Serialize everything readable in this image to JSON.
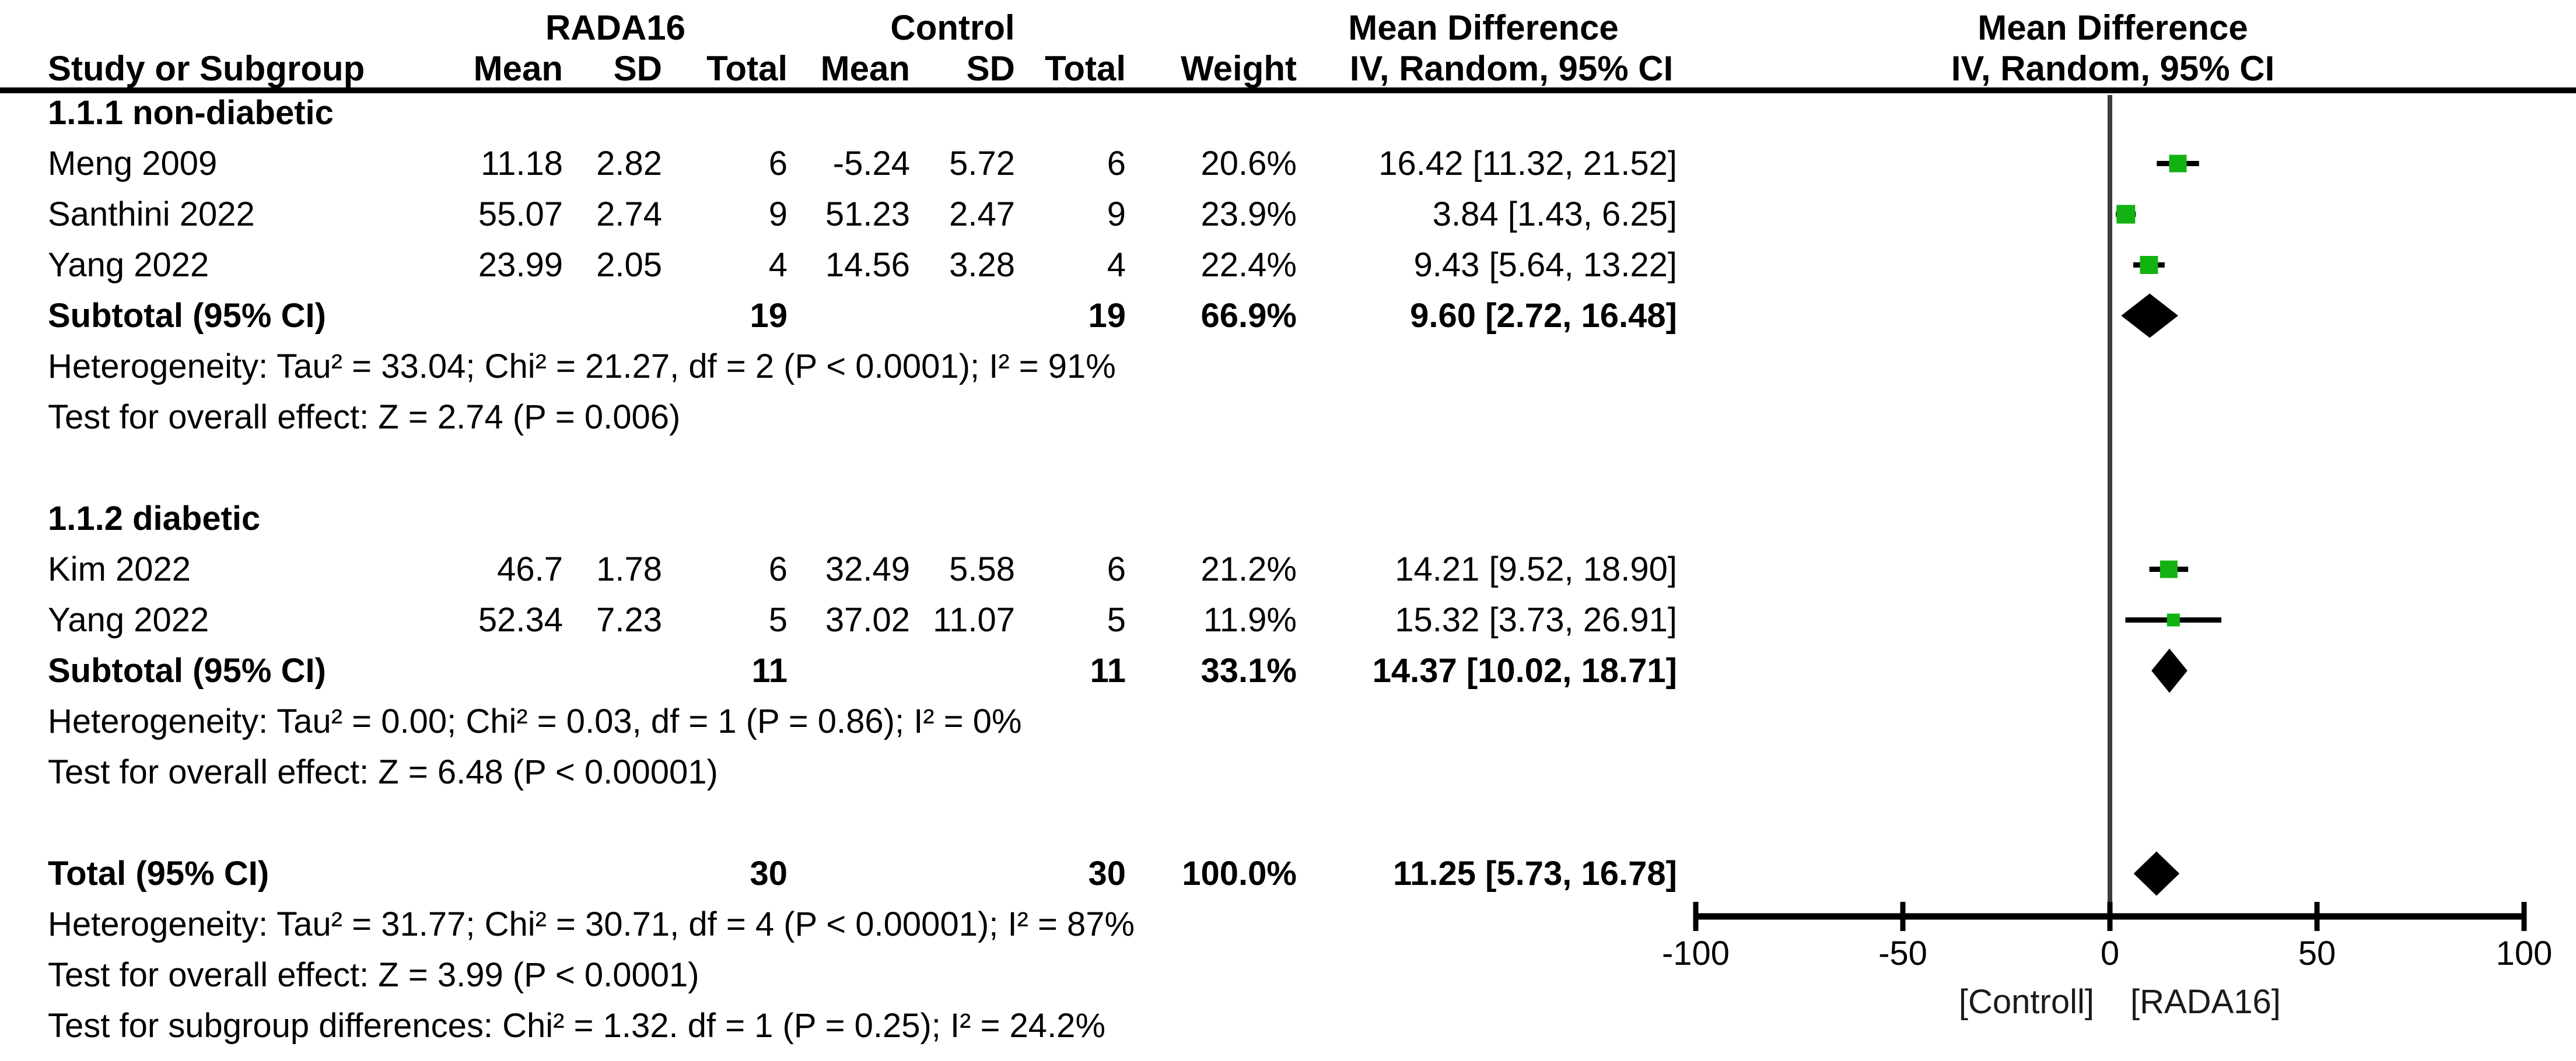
{
  "header": {
    "group_experimental": "RADA16",
    "group_control": "Control",
    "effect_column_title": "Mean Difference",
    "effect_plot_title": "Mean Difference",
    "col_study": "Study or Subgroup",
    "col_mean": "Mean",
    "col_sd": "SD",
    "col_total": "Total",
    "col_weight": "Weight",
    "col_ci": "IV, Random, 95% CI",
    "col_ci_plot": "IV, Random, 95% CI"
  },
  "colors": {
    "square_green": "#12b212",
    "diamond_black": "#000000",
    "ci_line": "#000000",
    "zero_line": "#3c3c3c",
    "axis": "#000000"
  },
  "chart_data": {
    "type": "forest",
    "effect_measure": "Mean Difference",
    "model": "IV, Random, 95% CI",
    "axis": {
      "min": -100,
      "max": 100,
      "ticks": [
        -100,
        -50,
        0,
        50,
        100
      ],
      "favours_left": "[Controll]",
      "favours_right": "[RADA16]"
    },
    "subgroups": [
      {
        "label": "1.1.1 non-diabetic",
        "studies": [
          {
            "name": "Meng 2009",
            "mean_t": "11.18",
            "sd_t": "2.82",
            "n_t": "6",
            "mean_c": "-5.24",
            "sd_c": "5.72",
            "n_c": "6",
            "weight": 20.6,
            "weight_label": "20.6%",
            "md": 16.42,
            "lo": 11.32,
            "hi": 21.52,
            "ci_label": "16.42 [11.32, 21.52]"
          },
          {
            "name": "Santhini 2022",
            "mean_t": "55.07",
            "sd_t": "2.74",
            "n_t": "9",
            "mean_c": "51.23",
            "sd_c": "2.47",
            "n_c": "9",
            "weight": 23.9,
            "weight_label": "23.9%",
            "md": 3.84,
            "lo": 1.43,
            "hi": 6.25,
            "ci_label": "3.84 [1.43, 6.25]"
          },
          {
            "name": "Yang 2022",
            "mean_t": "23.99",
            "sd_t": "2.05",
            "n_t": "4",
            "mean_c": "14.56",
            "sd_c": "3.28",
            "n_c": "4",
            "weight": 22.4,
            "weight_label": "22.4%",
            "md": 9.43,
            "lo": 5.64,
            "hi": 13.22,
            "ci_label": "9.43 [5.64, 13.22]"
          }
        ],
        "subtotal": {
          "label": "Subtotal (95% CI)",
          "n_t": "19",
          "n_c": "19",
          "weight_label": "66.9%",
          "md": 9.6,
          "lo": 2.72,
          "hi": 16.48,
          "ci_label": "9.60 [2.72, 16.48]"
        },
        "heterogeneity": "Heterogeneity: Tau² = 33.04; Chi² = 21.27, df = 2 (P < 0.0001); I² = 91%",
        "overall_effect": "Test for overall effect: Z = 2.74 (P = 0.006)"
      },
      {
        "label": "1.1.2 diabetic",
        "studies": [
          {
            "name": "Kim 2022",
            "mean_t": "46.7",
            "sd_t": "1.78",
            "n_t": "6",
            "mean_c": "32.49",
            "sd_c": "5.58",
            "n_c": "6",
            "weight": 21.2,
            "weight_label": "21.2%",
            "md": 14.21,
            "lo": 9.52,
            "hi": 18.9,
            "ci_label": "14.21 [9.52, 18.90]"
          },
          {
            "name": "Yang 2022",
            "mean_t": "52.34",
            "sd_t": "7.23",
            "n_t": "5",
            "mean_c": "37.02",
            "sd_c": "11.07",
            "n_c": "5",
            "weight": 11.9,
            "weight_label": "11.9%",
            "md": 15.32,
            "lo": 3.73,
            "hi": 26.91,
            "ci_label": "15.32 [3.73, 26.91]"
          }
        ],
        "subtotal": {
          "label": "Subtotal (95% CI)",
          "n_t": "11",
          "n_c": "11",
          "weight_label": "33.1%",
          "md": 14.37,
          "lo": 10.02,
          "hi": 18.71,
          "ci_label": "14.37 [10.02, 18.71]"
        },
        "heterogeneity": "Heterogeneity: Tau² = 0.00; Chi² = 0.03, df = 1 (P = 0.86); I² = 0%",
        "overall_effect": "Test for overall effect: Z = 6.48 (P < 0.00001)"
      }
    ],
    "total": {
      "label": "Total (95% CI)",
      "n_t": "30",
      "n_c": "30",
      "weight_label": "100.0%",
      "md": 11.25,
      "lo": 5.73,
      "hi": 16.78,
      "ci_label": "11.25 [5.73, 16.78]"
    },
    "total_heterogeneity": "Heterogeneity: Tau² = 31.77; Chi² = 30.71, df = 4 (P < 0.00001); I² = 87%",
    "total_overall_effect": "Test for overall effect: Z = 3.99 (P < 0.0001)",
    "subgroup_differences": "Test for subgroup differences: Chi² = 1.32. df = 1 (P = 0.25); I² = 24.2%"
  }
}
